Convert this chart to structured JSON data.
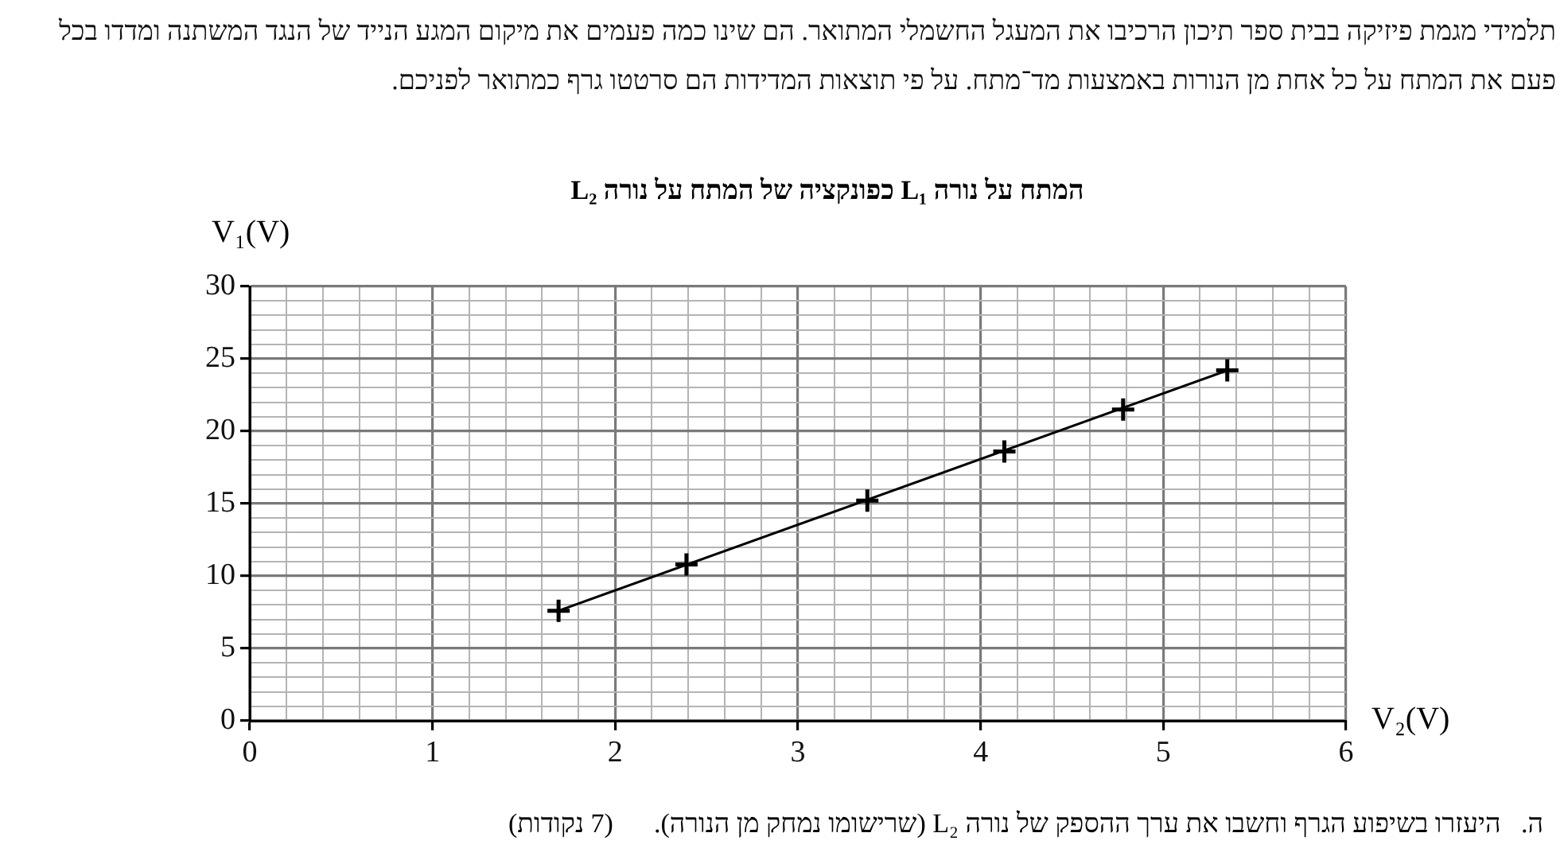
{
  "chart_data": {
    "type": "scatter",
    "title": "המתח על נורה L₁ כפונקציה של המתח על נורה L₂",
    "xlabel": "V₂(V)",
    "ylabel": "V₁(V)",
    "annotations": [
      "תלמידי מגמת פיזיקה בבית ספר תיכון הרכיבו את המעגל החשמלי המתואר. הם שינו כמה פעמים את מיקום המגע הנייד של הנגד המשתנה ומדדו בכל פעם את המתח על כל אחת מן הנורות באמצעות מד־מתח. על פי תוצאות המדידות הם סרטטו גרף כמתואר לפניכם.",
      "ה.   היעזרו בשיפוע הגרף וחשבו את ערך ההספק של נורה L₂ (שרישומו נמחק מן הנורה).      (7 נקודות)"
    ],
    "series": [
      {
        "color": "#000000",
        "marker": "cross",
        "x": [
          1.69,
          2.39,
          3.38,
          4.13,
          4.78,
          5.35
        ],
        "values": [
          7.6,
          10.8,
          15.2,
          18.6,
          21.5,
          24.2
        ]
      },
      {
        "type": "line",
        "color": "#000000",
        "marker": "none",
        "line_style": "solid",
        "x": [
          1.69,
          5.35
        ],
        "values": [
          7.6,
          24.2
        ]
      }
    ],
    "xlim": [
      0,
      6
    ],
    "ylim": [
      0,
      30
    ],
    "xticks": [
      0,
      {
        "value": 0.2,
        "label": null
      },
      {
        "value": 0.4,
        "label": null
      },
      {
        "value": 0.6,
        "label": null
      },
      {
        "value": 0.8,
        "label": null
      },
      1,
      {
        "value": 1.2,
        "label": null
      },
      {
        "value": 1.4,
        "label": null
      },
      {
        "value": 1.6,
        "label": null
      },
      {
        "value": 1.8,
        "label": null
      },
      2,
      {
        "value": 2.2,
        "label": null
      },
      {
        "value": 2.4,
        "label": null
      },
      {
        "value": 2.6,
        "label": null
      },
      {
        "value": 2.8,
        "label": null
      },
      3,
      {
        "value": 3.2,
        "label": null
      },
      {
        "value": 3.4,
        "label": null
      },
      {
        "value": 3.6,
        "label": null
      },
      {
        "value": 3.8,
        "label": null
      },
      4,
      {
        "value": 4.2,
        "label": null
      },
      {
        "value": 4.4,
        "label": null
      },
      {
        "value": 4.6,
        "label": null
      },
      {
        "value": 4.8,
        "label": null
      },
      5,
      {
        "value": 5.2,
        "label": null
      },
      {
        "value": 5.4,
        "label": null
      },
      {
        "value": 5.6,
        "label": null
      },
      {
        "value": 5.8,
        "label": null
      },
      6
    ],
    "yticks": [
      0,
      {
        "value": 1,
        "label": null
      },
      {
        "value": 2,
        "label": null
      },
      {
        "value": 3,
        "label": null
      },
      {
        "value": 4,
        "label": null
      },
      5,
      {
        "value": 6,
        "label": null
      },
      {
        "value": 7,
        "label": null
      },
      {
        "value": 8,
        "label": null
      },
      {
        "value": 9,
        "label": null
      },
      10,
      {
        "value": 11,
        "label": null
      },
      {
        "value": 12,
        "label": null
      },
      {
        "value": 13,
        "label": null
      },
      {
        "value": 14,
        "label": null
      },
      15,
      {
        "value": 16,
        "label": null
      },
      {
        "value": 17,
        "label": null
      },
      {
        "value": 18,
        "label": null
      },
      {
        "value": 19,
        "label": null
      },
      20,
      {
        "value": 21,
        "label": null
      },
      {
        "value": 22,
        "label": null
      },
      {
        "value": 23,
        "label": null
      },
      {
        "value": 24,
        "label": null
      },
      25,
      {
        "value": 26,
        "label": null
      },
      {
        "value": 27,
        "label": null
      },
      {
        "value": 28,
        "label": null
      },
      {
        "value": 29,
        "label": null
      },
      30
    ],
    "grid": true,
    "legend": false
  }
}
